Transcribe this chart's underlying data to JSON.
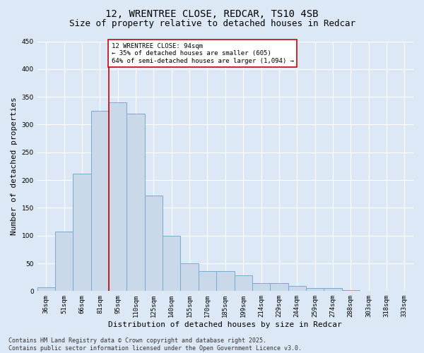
{
  "title_line1": "12, WRENTREE CLOSE, REDCAR, TS10 4SB",
  "title_line2": "Size of property relative to detached houses in Redcar",
  "xlabel": "Distribution of detached houses by size in Redcar",
  "ylabel": "Number of detached properties",
  "categories": [
    "36sqm",
    "51sqm",
    "66sqm",
    "81sqm",
    "95sqm",
    "110sqm",
    "125sqm",
    "140sqm",
    "155sqm",
    "170sqm",
    "185sqm",
    "199sqm",
    "214sqm",
    "229sqm",
    "244sqm",
    "259sqm",
    "274sqm",
    "288sqm",
    "303sqm",
    "318sqm",
    "333sqm"
  ],
  "values": [
    7,
    107,
    212,
    325,
    340,
    320,
    172,
    99,
    50,
    36,
    36,
    29,
    15,
    15,
    9,
    5,
    5,
    2,
    1,
    1,
    1
  ],
  "bar_color": "#c9d9ea",
  "bar_edge_color": "#7aaad0",
  "vline_bin_index": 4,
  "annotation_text": "12 WRENTREE CLOSE: 94sqm\n← 35% of detached houses are smaller (605)\n64% of semi-detached houses are larger (1,094) →",
  "annotation_box_color": "#ffffff",
  "annotation_border_color": "#cc0000",
  "vline_color": "#cc0000",
  "ylim": [
    0,
    450
  ],
  "yticks": [
    0,
    50,
    100,
    150,
    200,
    250,
    300,
    350,
    400,
    450
  ],
  "footer_line1": "Contains HM Land Registry data © Crown copyright and database right 2025.",
  "footer_line2": "Contains public sector information licensed under the Open Government Licence v3.0.",
  "background_color": "#dce8f5",
  "plot_bg_color": "#dce8f5",
  "grid_color": "#ffffff",
  "title_fontsize": 10,
  "subtitle_fontsize": 9,
  "axis_label_fontsize": 8,
  "tick_fontsize": 6.5,
  "annotation_fontsize": 6.5,
  "footer_fontsize": 6
}
